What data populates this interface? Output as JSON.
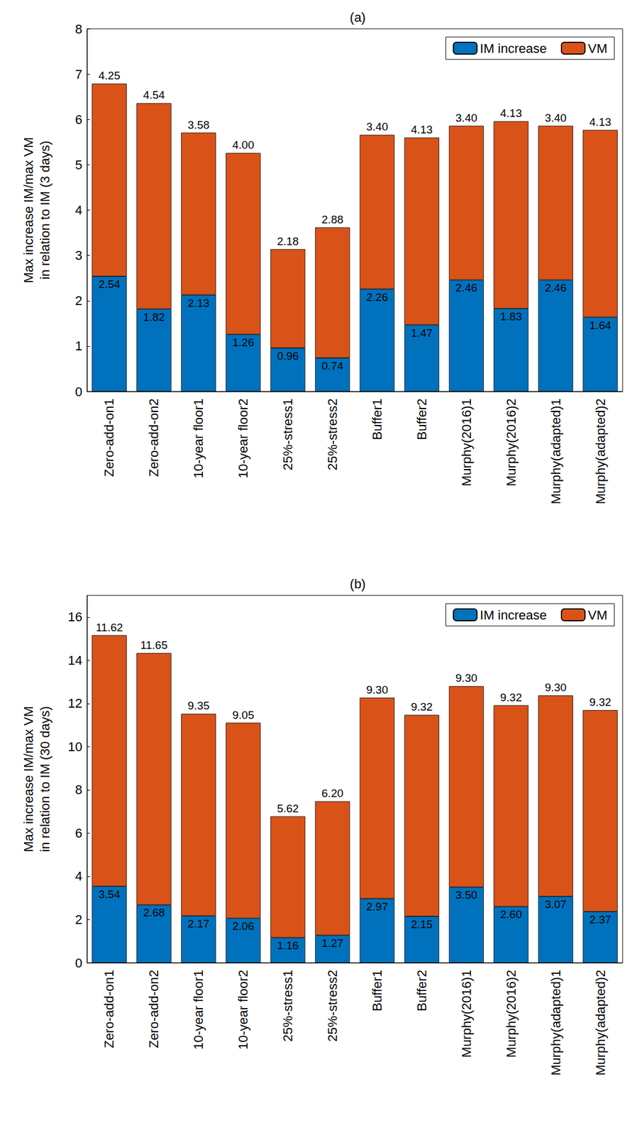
{
  "chart_data": [
    {
      "type": "bar",
      "title": "(a)",
      "y_label": "Max increase IM/max VM\nin relation to IM (3 days)",
      "categories": [
        "Zero-add-on1",
        "Zero-add-on2",
        "10-year floor1",
        "10-year floor2",
        "25%-stress1",
        "25%-stress2",
        "Buffer1",
        "Buffer2",
        "Murphy(2016)1",
        "Murphy(2016)2",
        "Murphy(adapted)1",
        "Murphy(adapted)2"
      ],
      "series": [
        {
          "name": "IM increase",
          "color": "#0072BD",
          "values": [
            2.54,
            1.82,
            2.13,
            1.26,
            0.96,
            0.74,
            2.26,
            1.47,
            2.46,
            1.83,
            2.46,
            1.64
          ],
          "value_labels": [
            "2.54",
            "1.82",
            "2.13",
            "1.26",
            "0.96",
            "0.74",
            "2.26",
            "1.47",
            "2.46",
            "1.83",
            "2.46",
            "1.64"
          ]
        },
        {
          "name": "VM",
          "color": "#D95319",
          "values": [
            4.25,
            4.54,
            3.58,
            4.0,
            2.18,
            2.88,
            3.4,
            4.13,
            3.4,
            4.13,
            3.4,
            4.13
          ],
          "value_labels": [
            "4.25",
            "4.54",
            "3.58",
            "4.00",
            "2.18",
            "2.88",
            "3.40",
            "4.13",
            "3.40",
            "4.13",
            "3.40",
            "4.13"
          ]
        }
      ],
      "ylim": [
        0,
        8
      ],
      "yticks": [
        0,
        1,
        2,
        3,
        4,
        5,
        6,
        7,
        8
      ],
      "stacked": true,
      "data_labels": true,
      "legend": "upper right",
      "grid": false
    },
    {
      "type": "bar",
      "title": "(b)",
      "y_label": "Max increase IM/max VM\nin relation to IM (30 days)",
      "categories": [
        "Zero-add-on1",
        "Zero-add-on2",
        "10-year floor1",
        "10-year floor2",
        "25%-stress1",
        "25%-stress2",
        "Buffer1",
        "Buffer2",
        "Murphy(2016)1",
        "Murphy(2016)2",
        "Murphy(adapted)1",
        "Murphy(adapted)2"
      ],
      "series": [
        {
          "name": "IM increase",
          "color": "#0072BD",
          "values": [
            3.54,
            2.68,
            2.17,
            2.06,
            1.16,
            1.27,
            2.97,
            2.15,
            3.5,
            2.6,
            3.07,
            2.37
          ],
          "value_labels": [
            "3.54",
            "2.68",
            "2.17",
            "2.06",
            "1.16",
            "1.27",
            "2.97",
            "2.15",
            "3.50",
            "2.60",
            "3.07",
            "2.37"
          ]
        },
        {
          "name": "VM",
          "color": "#D95319",
          "values": [
            11.62,
            11.65,
            9.35,
            9.05,
            5.62,
            6.2,
            9.3,
            9.32,
            9.3,
            9.32,
            9.3,
            9.32
          ],
          "value_labels": [
            "11.62",
            "11.65",
            "9.35",
            "9.05",
            "5.62",
            "6.20",
            "9.30",
            "9.32",
            "9.30",
            "9.32",
            "9.30",
            "9.32"
          ]
        }
      ],
      "ylim": [
        0,
        17
      ],
      "yticks": [
        0,
        2,
        4,
        6,
        8,
        10,
        12,
        14,
        16
      ],
      "stacked": true,
      "data_labels": true,
      "legend": "upper right",
      "grid": false
    }
  ]
}
